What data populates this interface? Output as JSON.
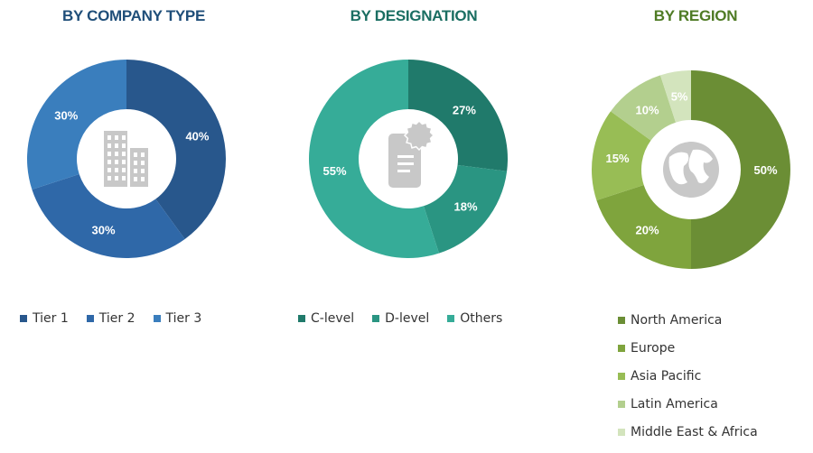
{
  "chart_data": [
    {
      "type": "pie",
      "title": "BY COMPANY TYPE",
      "title_color": "#1f4e79",
      "categories": [
        "Tier 1",
        "Tier 2",
        "Tier 3"
      ],
      "values": [
        40,
        30,
        30
      ],
      "labels": [
        "40%",
        "30%",
        "30%"
      ],
      "colors": [
        "#28578c",
        "#2f68a8",
        "#3a7ebd"
      ],
      "donut": true,
      "center_icon": "building-icon",
      "legend_position": "bottom"
    },
    {
      "type": "pie",
      "title": "BY DESIGNATION",
      "title_color": "#1a6e62",
      "categories": [
        "C-level",
        "D-level",
        "Others"
      ],
      "values": [
        27,
        18,
        55
      ],
      "labels": [
        "27%",
        "18%",
        "55%"
      ],
      "colors": [
        "#207a6b",
        "#2a9582",
        "#36ac98"
      ],
      "donut": true,
      "center_icon": "certificate-document-icon",
      "legend_position": "bottom"
    },
    {
      "type": "pie",
      "title": "BY REGION",
      "title_color": "#4f7b25",
      "categories": [
        "North America",
        "Europe",
        "Asia Pacific",
        "Latin America",
        "Middle East & Africa"
      ],
      "values": [
        50,
        20,
        15,
        10,
        5
      ],
      "labels": [
        "50%",
        "20%",
        "15%",
        "10%",
        "5%"
      ],
      "colors": [
        "#6b8e35",
        "#7fa43d",
        "#98bd55",
        "#b3cf8e",
        "#d3e4bd"
      ],
      "donut": true,
      "center_icon": "globe-icon",
      "legend_position": "bottom"
    }
  ]
}
